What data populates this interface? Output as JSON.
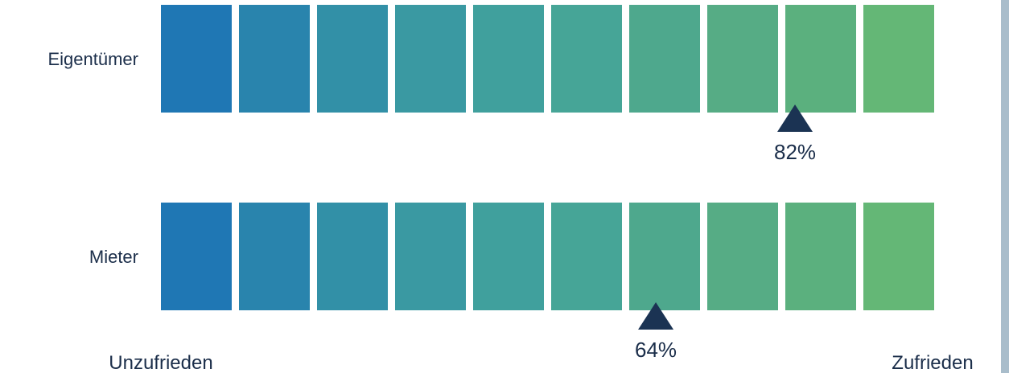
{
  "chart_data": {
    "type": "rating-scale",
    "segments": 10,
    "colors": [
      "#1f77b4",
      "#2984ad",
      "#3290a7",
      "#3a99a2",
      "#40a09d",
      "#46a597",
      "#4ea88d",
      "#56ac85",
      "#5bb07e",
      "#64b776"
    ],
    "rows": [
      {
        "label": "Eigentümer",
        "value": 82,
        "value_label": "82%"
      },
      {
        "label": "Mieter",
        "value": 64,
        "value_label": "64%"
      }
    ],
    "scale_min_label": "Unzufrieden",
    "scale_max_label": "Zufrieden",
    "marker_color": "#1b3353",
    "text_color": "#1b2e4a"
  }
}
